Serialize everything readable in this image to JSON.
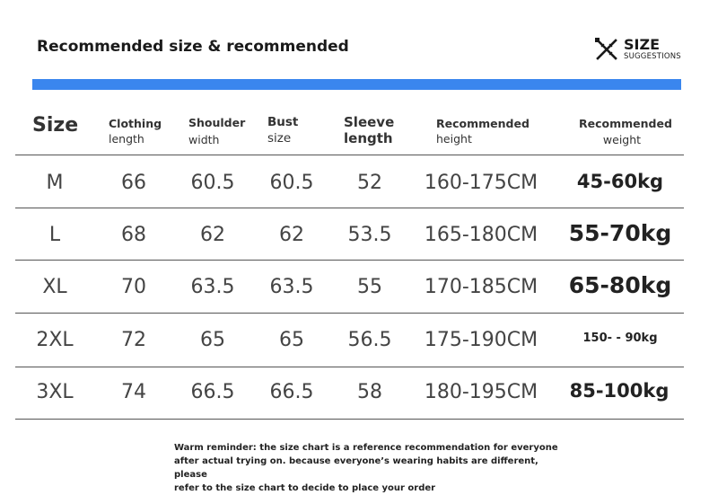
{
  "title": "Recommended size & recommended",
  "logo": {
    "big": "SIZE",
    "small": "SUGGESTIONS",
    "icon": "ruler-pencil-icon"
  },
  "accent_color": "#3a86ee",
  "headers": {
    "size": "Size",
    "clothing_length": [
      "Clothing",
      "length"
    ],
    "shoulder_width": [
      "Shoulder",
      "width"
    ],
    "bust_size": [
      "Bust",
      "size"
    ],
    "sleeve_length": [
      "Sleeve",
      "length"
    ],
    "recommended_height": [
      "Recommended",
      "height"
    ],
    "recommended_weight": [
      "Recommended",
      "weight"
    ]
  },
  "rows": [
    {
      "size": "M",
      "clothing_length": "66",
      "shoulder_width": "60.5",
      "bust_size": "60.5",
      "sleeve_length": "52",
      "recommended_height": "160-175CM",
      "recommended_weight": "45-60kg"
    },
    {
      "size": "L",
      "clothing_length": "68",
      "shoulder_width": "62",
      "bust_size": "62",
      "sleeve_length": "53.5",
      "recommended_height": "165-180CM",
      "recommended_weight": "55-70kg"
    },
    {
      "size": "XL",
      "clothing_length": "70",
      "shoulder_width": "63.5",
      "bust_size": "63.5",
      "sleeve_length": "55",
      "recommended_height": "170-185CM",
      "recommended_weight": "65-80kg"
    },
    {
      "size": "2XL",
      "clothing_length": "72",
      "shoulder_width": "65",
      "bust_size": "65",
      "sleeve_length": "56.5",
      "recommended_height": "175-190CM",
      "recommended_weight": "150- - 90kg"
    },
    {
      "size": "3XL",
      "clothing_length": "74",
      "shoulder_width": "66.5",
      "bust_size": "66.5",
      "sleeve_length": "58",
      "recommended_height": "180-195CM",
      "recommended_weight": "85-100kg"
    }
  ],
  "note": [
    "Warm reminder: the size chart is a reference recommendation for everyone",
    "after actual trying on. because everyone’s wearing habits are different, please",
    "refer to the size chart to decide to place your order"
  ]
}
